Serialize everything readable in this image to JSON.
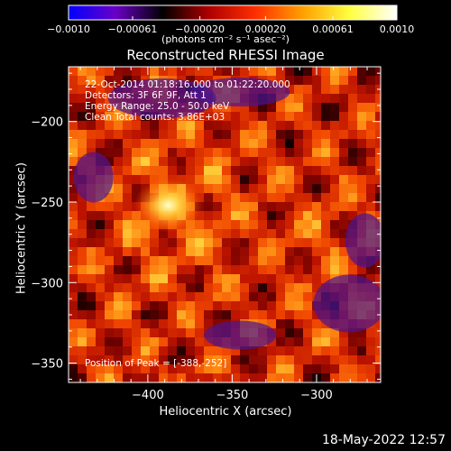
{
  "chart_data": {
    "type": "heatmap",
    "title": "Reconstructed RHESSI Image",
    "xlabel": "Heliocentric X (arcsec)",
    "ylabel": "Heliocentric Y (arcsec)",
    "xlim": [
      -447,
      -262
    ],
    "ylim": [
      -362,
      -166
    ],
    "xticks": [
      {
        "value": -400,
        "label": "−400"
      },
      {
        "value": -350,
        "label": "−350"
      },
      {
        "value": -300,
        "label": "−300"
      }
    ],
    "yticks": [
      {
        "value": -200,
        "label": "−200"
      },
      {
        "value": -250,
        "label": "−250"
      },
      {
        "value": -300,
        "label": "−300"
      },
      {
        "value": -350,
        "label": "−350"
      }
    ],
    "colorbar": {
      "range": [
        -0.001,
        0.001
      ],
      "ticks": [
        {
          "value": -0.001,
          "label": "−0.0010"
        },
        {
          "value": -0.00061,
          "label": "−0.00061"
        },
        {
          "value": -0.0002,
          "label": "−0.00020"
        },
        {
          "value": 0.0002,
          "label": "0.00020"
        },
        {
          "value": 0.00061,
          "label": "0.00061"
        },
        {
          "value": 0.001,
          "label": "0.0010"
        }
      ],
      "unit_label": "(photons cm⁻² s⁻¹ asec⁻²)",
      "colors": [
        "#0000ff",
        "#6a00c8",
        "#000000",
        "#b00000",
        "#ff3000",
        "#ffa000",
        "#ffff40",
        "#ffffff"
      ]
    },
    "peak": {
      "x": -388,
      "y": -252
    },
    "annotations": [
      "22-Oct-2014 01:18:16.000 to 01:22:20.000",
      "Detectors: 3F 6F 9F, Att 1",
      "Energy Range: 25.0 - 50.0 keV",
      "Clean     Total counts: 3.86E+03"
    ],
    "peak_label": "Position of Peak = [-388,-252]"
  },
  "footer": {
    "datestamp": "18-May-2022 12:57"
  }
}
